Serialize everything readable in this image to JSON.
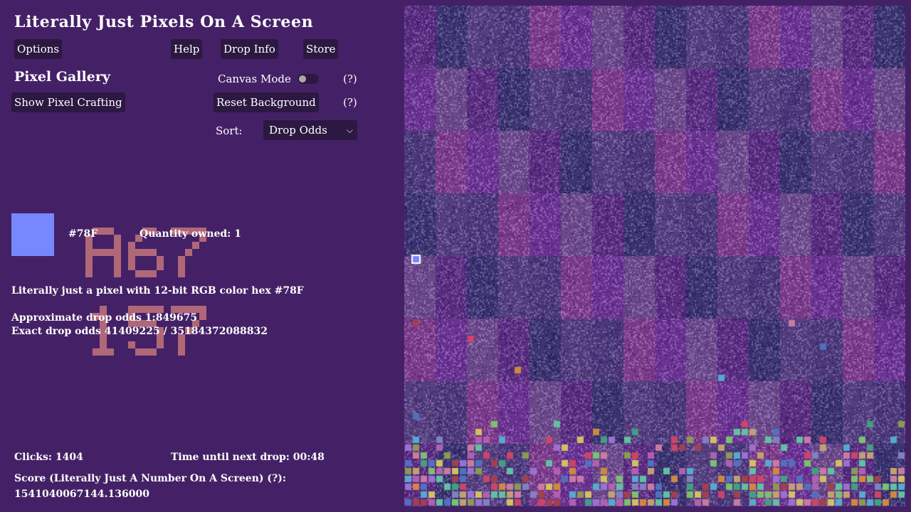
{
  "app": {
    "title": "Literally Just Pixels On A Screen"
  },
  "toolbar": {
    "options_label": "Options",
    "help_label": "Help",
    "drop_info_label": "Drop Info",
    "store_label": "Store"
  },
  "gallery": {
    "title": "Pixel Gallery",
    "show_crafting_label": "Show Pixel Crafting",
    "canvas_mode_label": "Canvas Mode",
    "canvas_mode_on": false,
    "help_hint_1": "(?)",
    "reset_background_label": "Reset Background",
    "help_hint_2": "(?)",
    "sort_label": "Sort:",
    "sort_value": "Drop Odds"
  },
  "selected_pixel": {
    "color": "#7788ff",
    "hex_label": "#78F",
    "quantity_label": "Quantity owned: 1",
    "description": "Literally just a pixel with 12-bit RGB color hex #78F",
    "approx_odds": "Approximate drop odds 1:849675",
    "exact_odds": "Exact drop odds 41409225 / 35184372088832",
    "overlay_color": "#b06878"
  },
  "stats": {
    "clicks": "Clicks: 1404",
    "next_drop": "Time until next drop: 00:48",
    "score_label": "Score (Literally Just A Number On A Screen) (?):",
    "score_value": "1541040067144.136000"
  },
  "canvas": {
    "background": "#4a2570",
    "base_tints": [
      "#5a2f80",
      "#6a3590",
      "#4d3a7a",
      "#3d3570",
      "#6b4a8a",
      "#7a3d8a",
      "#55407f"
    ],
    "selected_marker_color": "#7788ff",
    "collected_colors": [
      "#cc4466",
      "#7ac070",
      "#55aacc",
      "#d08840",
      "#9a70d0",
      "#c87aa0",
      "#8a9a50",
      "#5070c0",
      "#d0c060",
      "#40a080",
      "#a04050",
      "#8080c0",
      "#60c0a0",
      "#b060b0",
      "#c0a070"
    ]
  }
}
